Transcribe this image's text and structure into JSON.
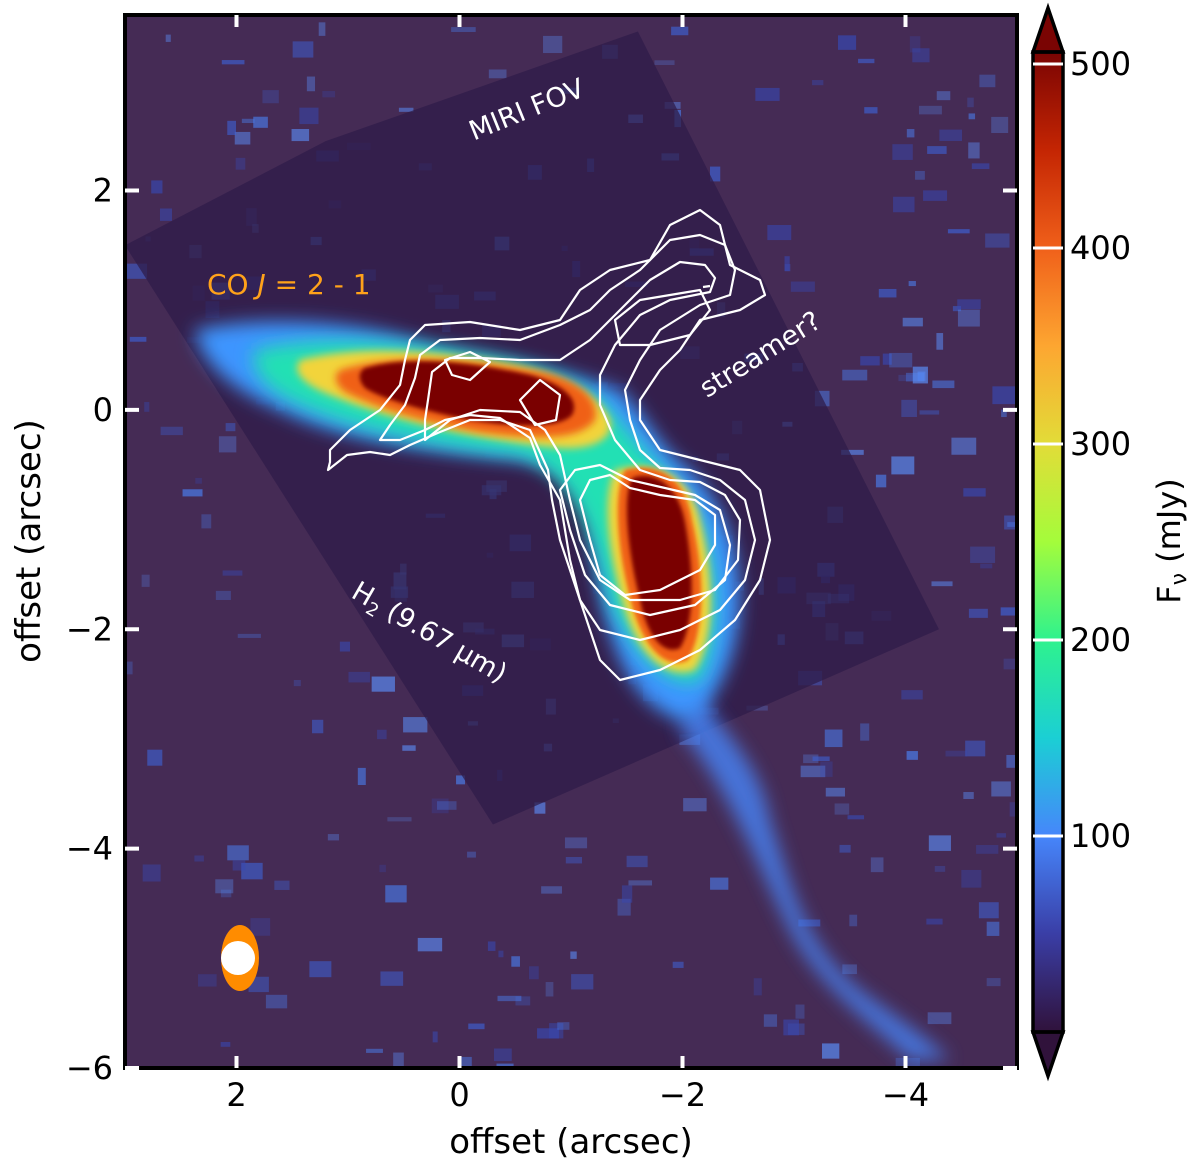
{
  "chart_data": {
    "type": "heatmap",
    "xlabel": "offset (arcsec)",
    "ylabel": "offset (arcsec)",
    "x_ticks": [
      2,
      0,
      -2,
      -4
    ],
    "x_tick_labels": [
      "2",
      "0",
      "−2",
      "−4"
    ],
    "y_ticks": [
      2,
      0,
      -2,
      -4,
      -6
    ],
    "y_tick_labels": [
      "2",
      "0",
      "−2",
      "−4",
      "−6"
    ],
    "xlim": [
      3.0,
      -5.0
    ],
    "ylim": [
      -6.0,
      3.6
    ],
    "colorbar": {
      "label": "Fν (mJy)",
      "range": [
        0,
        500
      ],
      "ticks": [
        100,
        200,
        300,
        400,
        500
      ],
      "tick_labels": [
        "100",
        "200",
        "300",
        "400",
        "500"
      ],
      "colormap": "turbo",
      "extend": "both"
    },
    "annotations": {
      "fov": "MIRI FOV",
      "co_prefix": "CO ",
      "co_j": "J",
      "co_suffix": " = 2 - 1",
      "streamer": "streamer?",
      "h2_main": "H",
      "h2_sub": "2",
      "h2_rest": " (9.67 μm)"
    },
    "fov_polygon": [
      [
        3.0,
        1.5
      ],
      [
        1.2,
        2.45
      ],
      [
        -1.6,
        3.45
      ],
      [
        -4.3,
        -2.0
      ],
      [
        -0.3,
        -3.78
      ]
    ],
    "emission_components": [
      {
        "name": "outflow-knot",
        "x": 0.4,
        "y": 0.05,
        "peak_mJy": 500
      },
      {
        "name": "central-ridge",
        "x": -0.2,
        "y": -0.05,
        "peak_mJy": 500
      },
      {
        "name": "south-clump",
        "x": -1.9,
        "y": -1.3,
        "peak_mJy": 500
      },
      {
        "name": "tail",
        "x": -3.0,
        "y": -4.0,
        "peak_mJy": 120
      }
    ],
    "beams": [
      {
        "name": "CO beam",
        "color": "#ff8c00",
        "x": 2.0,
        "y": -5.0
      },
      {
        "name": "MIRI beam",
        "color": "#ffffff",
        "x": 2.0,
        "y": -5.0
      }
    ],
    "contour_color": "#ffffff"
  }
}
